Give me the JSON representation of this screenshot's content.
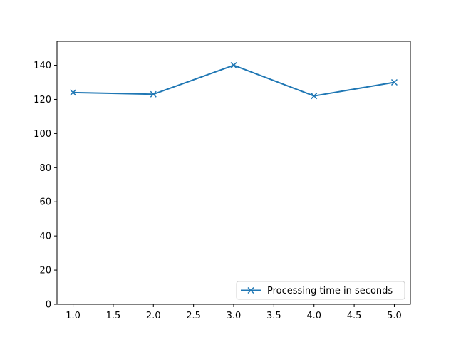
{
  "chart_data": {
    "type": "line",
    "x": [
      1.0,
      2.0,
      3.0,
      4.0,
      5.0
    ],
    "series": [
      {
        "name": "Processing time in seconds",
        "values": [
          124,
          123,
          140,
          122,
          130
        ],
        "color": "#1f77b4",
        "marker": "x"
      }
    ],
    "xlim": [
      0.8,
      5.2
    ],
    "ylim": [
      0,
      154
    ],
    "xticks": [
      "1.0",
      "1.5",
      "2.0",
      "2.5",
      "3.0",
      "3.5",
      "4.0",
      "4.5",
      "5.0"
    ],
    "yticks": [
      "0",
      "20",
      "40",
      "60",
      "80",
      "100",
      "120",
      "140"
    ],
    "title": "",
    "xlabel": "",
    "ylabel": "",
    "grid": false,
    "legend_position": "lower-right"
  }
}
